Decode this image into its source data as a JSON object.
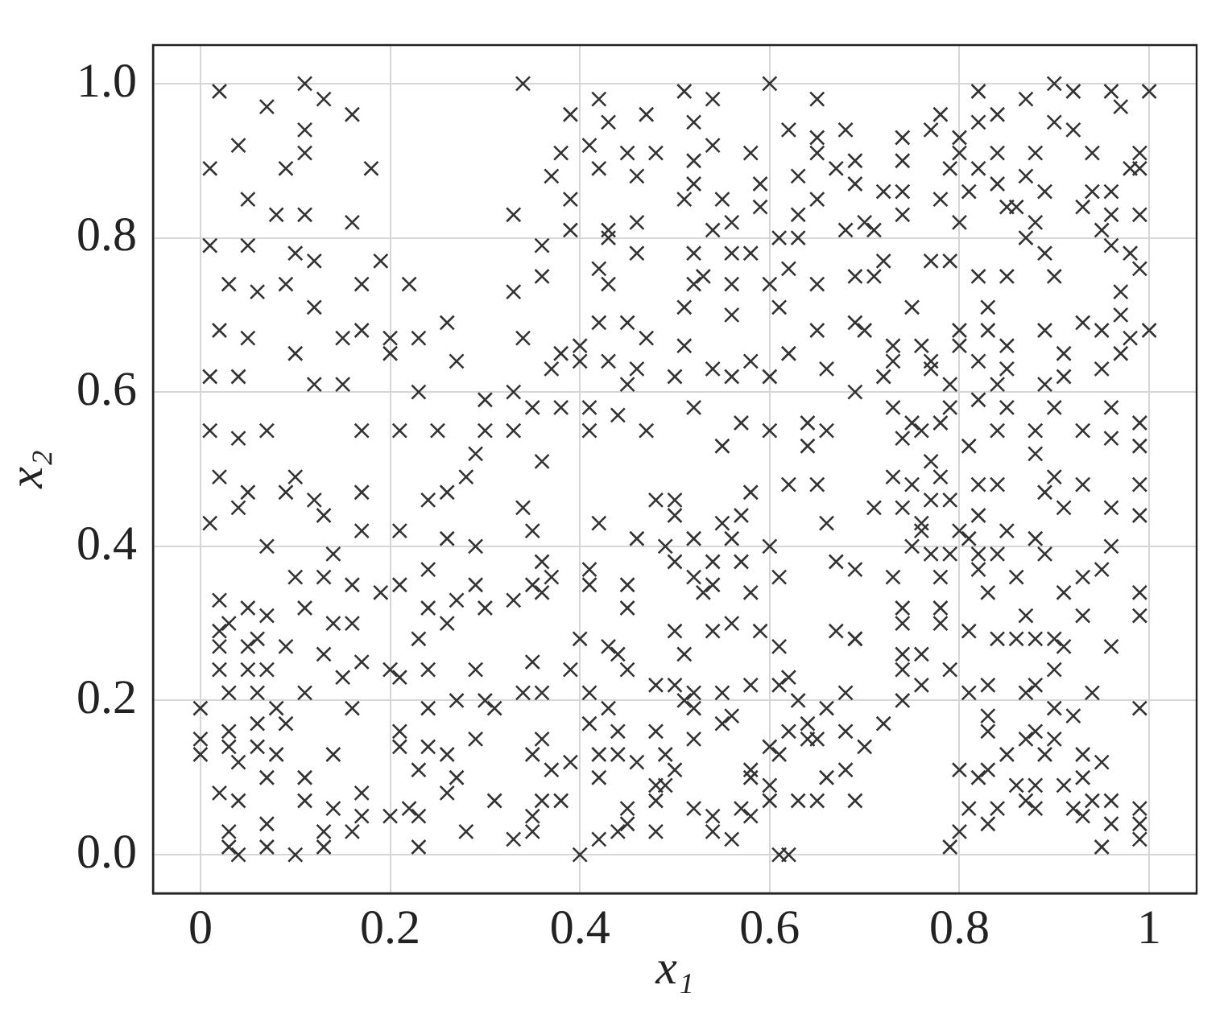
{
  "chart_data": {
    "type": "scatter",
    "xlabel": "x₁",
    "ylabel": "x₂",
    "color": "#333333",
    "marker": "cross",
    "grid": true,
    "xlim": [
      -0.05,
      1.05
    ],
    "ylim": [
      -0.05,
      1.05
    ],
    "xticks": [
      0,
      0.2,
      0.4,
      0.6,
      0.8,
      1
    ],
    "yticks": [
      {
        "value": 0,
        "label": "0.0"
      },
      0.2,
      0.4,
      0.6,
      0.8,
      {
        "value": 1,
        "label": "1.0"
      }
    ],
    "x": [
      0.02,
      0.07,
      0.11,
      0.13,
      0.16,
      0.04,
      0.11,
      0.11,
      0.01,
      0.09,
      0.18,
      0.05,
      0.08,
      0.11,
      0.16,
      0.01,
      0.05,
      0.1,
      0.12,
      0.19,
      0.03,
      0.06,
      0.09,
      0.17,
      0.22,
      0.02,
      0.05,
      0.12,
      0.15,
      0.17,
      0.2,
      0.23,
      0.26,
      0.01,
      0.04,
      0.1,
      0.12,
      0.15,
      0.2,
      0.23,
      0.27,
      0.3,
      0.01,
      0.04,
      0.07,
      0.17,
      0.21,
      0.25,
      0.29,
      0.3,
      0.34,
      0.42,
      0.51,
      0.54,
      0.6,
      0.65,
      0.39,
      0.43,
      0.47,
      0.52,
      0.68,
      0.41,
      0.38,
      0.48,
      0.54,
      0.62,
      0.65,
      0.65,
      0.42,
      0.45,
      0.52,
      0.58,
      0.67,
      0.37,
      0.46,
      0.52,
      0.59,
      0.63,
      0.39,
      0.51,
      0.55,
      0.59,
      0.65,
      0.33,
      0.39,
      0.43,
      0.46,
      0.54,
      0.56,
      0.63,
      0.68,
      0.36,
      0.43,
      0.46,
      0.52,
      0.56,
      0.58,
      0.61,
      0.63,
      0.42,
      0.43,
      0.36,
      0.33,
      0.52,
      0.53,
      0.56,
      0.6,
      0.62,
      0.65,
      0.69,
      0.51,
      0.56,
      0.61,
      0.69,
      0.42,
      0.45,
      0.47,
      0.34,
      0.38,
      0.4,
      0.51,
      0.58,
      0.62,
      0.65,
      0.37,
      0.4,
      0.43,
      0.46,
      0.5,
      0.54,
      0.56,
      0.6,
      0.66,
      0.45,
      0.33,
      0.41,
      0.44,
      0.35,
      0.38,
      0.52,
      0.57,
      0.6,
      0.64,
      0.66,
      0.33,
      0.41,
      0.47,
      0.36,
      0.55,
      0.64,
      0.82,
      0.87,
      0.9,
      0.92,
      0.96,
      0.97,
      1.0,
      0.78,
      0.77,
      0.82,
      0.84,
      0.9,
      0.92,
      0.74,
      0.8,
      0.8,
      0.94,
      0.99,
      0.74,
      0.69,
      0.79,
      0.82,
      0.84,
      0.88,
      0.98,
      0.99,
      0.87,
      0.69,
      0.84,
      0.72,
      0.74,
      0.78,
      0.81,
      0.89,
      0.94,
      0.96,
      0.85,
      0.86,
      0.93,
      0.96,
      0.7,
      0.74,
      0.8,
      0.88,
      0.95,
      0.99,
      0.71,
      0.87,
      0.96,
      0.72,
      0.77,
      0.79,
      0.89,
      0.98,
      0.71,
      0.82,
      0.85,
      0.9,
      0.99,
      0.97,
      0.75,
      0.83,
      0.7,
      0.8,
      0.83,
      0.89,
      0.93,
      0.95,
      0.97,
      1.0,
      0.73,
      0.76,
      0.8,
      0.85,
      0.98,
      0.73,
      0.77,
      0.77,
      0.82,
      0.85,
      0.91,
      0.95,
      0.97,
      0.72,
      0.79,
      0.84,
      0.89,
      0.91,
      0.69,
      0.82,
      0.85,
      0.9,
      0.96,
      0.73,
      0.75,
      0.79,
      0.78,
      0.76,
      0.74,
      0.84,
      0.88,
      0.93,
      0.96,
      0.99,
      0.99,
      0.77,
      0.81,
      0.88,
      0.02,
      0.05,
      0.09,
      0.1,
      0.12,
      0.13,
      0.17,
      0.04,
      0.01,
      0.07,
      0.14,
      0.17,
      0.1,
      0.13,
      0.16,
      0.19,
      0.21,
      0.02,
      0.05,
      0.07,
      0.11,
      0.14,
      0.16,
      0.02,
      0.03,
      0.06,
      0.02,
      0.05,
      0.09,
      0.13,
      0.02,
      0.05,
      0.07,
      0.15,
      0.17,
      0.2,
      0.21,
      0.03,
      0.06,
      0.08,
      0.0,
      0.11,
      0.16,
      0.06,
      0.09,
      0.0,
      0.03,
      0.0,
      0.03,
      0.04,
      0.06,
      0.08,
      0.14,
      0.07,
      0.11,
      0.02,
      0.04,
      0.11,
      0.14,
      0.17,
      0.03,
      0.03,
      0.04,
      0.07,
      0.07,
      0.1,
      0.13,
      0.13,
      0.17,
      0.16,
      0.2,
      0.22,
      0.23,
      0.23,
      0.21,
      0.24,
      0.26,
      0.28,
      0.24,
      0.24,
      0.27,
      0.26,
      0.23,
      0.24,
      0.29,
      0.26,
      0.29,
      0.3,
      0.29,
      0.24,
      0.27,
      0.3,
      0.31,
      0.29,
      0.24,
      0.26,
      0.27,
      0.26,
      0.23,
      0.21,
      0.21,
      0.31,
      0.28,
      0.34,
      0.35,
      0.42,
      0.48,
      0.5,
      0.5,
      0.55,
      0.57,
      0.58,
      0.62,
      0.65,
      0.66,
      0.46,
      0.49,
      0.5,
      0.52,
      0.56,
      0.54,
      0.57,
      0.6,
      0.36,
      0.41,
      0.35,
      0.37,
      0.41,
      0.45,
      0.52,
      0.54,
      0.61,
      0.67,
      0.69,
      0.33,
      0.36,
      0.45,
      0.53,
      0.58,
      0.4,
      0.5,
      0.54,
      0.56,
      0.59,
      0.61,
      0.67,
      0.69,
      0.43,
      0.44,
      0.45,
      0.35,
      0.39,
      0.51,
      0.48,
      0.5,
      0.52,
      0.55,
      0.58,
      0.61,
      0.62,
      0.63,
      0.68,
      0.34,
      0.36,
      0.41,
      0.51,
      0.43,
      0.41,
      0.44,
      0.52,
      0.55,
      0.56,
      0.62,
      0.64,
      0.66,
      0.68,
      0.36,
      0.48,
      0.52,
      0.35,
      0.39,
      0.37,
      0.42,
      0.44,
      0.46,
      0.49,
      0.5,
      0.42,
      0.58,
      0.6,
      0.61,
      0.64,
      0.65,
      0.48,
      0.49,
      0.58,
      0.6,
      0.66,
      0.68,
      0.36,
      0.38,
      0.45,
      0.48,
      0.52,
      0.57,
      0.58,
      0.6,
      0.63,
      0.65,
      0.35,
      0.35,
      0.45,
      0.48,
      0.42,
      0.44,
      0.54,
      0.54,
      0.56,
      0.33,
      0.4,
      0.61,
      0.62,
      0.73,
      0.75,
      0.78,
      0.82,
      0.84,
      0.9,
      0.93,
      0.99,
      0.71,
      0.74,
      0.77,
      0.79,
      0.89,
      0.91,
      0.96,
      0.99,
      0.76,
      0.76,
      0.75,
      0.77,
      0.8,
      0.82,
      0.85,
      0.88,
      0.81,
      0.82,
      0.84,
      0.89,
      0.96,
      0.79,
      0.73,
      0.78,
      0.82,
      0.83,
      0.86,
      0.93,
      0.95,
      0.91,
      0.99,
      0.74,
      0.78,
      0.78,
      0.74,
      0.69,
      0.81,
      0.84,
      0.86,
      0.87,
      0.88,
      0.9,
      0.91,
      0.93,
      0.96,
      0.99,
      0.74,
      0.76,
      0.74,
      0.76,
      0.79,
      0.81,
      0.83,
      0.87,
      0.88,
      0.9,
      0.94,
      0.74,
      0.72,
      0.7,
      0.9,
      0.92,
      0.99,
      0.83,
      0.83,
      0.85,
      0.88,
      0.89,
      0.9,
      0.87,
      0.93,
      0.95,
      0.8,
      0.82,
      0.83,
      0.86,
      0.88,
      0.91,
      0.93,
      0.81,
      0.84,
      0.87,
      0.88,
      0.92,
      0.94,
      0.96,
      0.99,
      0.99,
      0.93,
      0.96,
      0.8,
      0.83,
      0.79,
      0.95,
      0.99,
      0.69
    ],
    "values": [
      0.99,
      0.97,
      1.0,
      0.98,
      0.96,
      0.92,
      0.94,
      0.91,
      0.89,
      0.89,
      0.89,
      0.85,
      0.83,
      0.83,
      0.82,
      0.79,
      0.79,
      0.78,
      0.77,
      0.77,
      0.74,
      0.73,
      0.74,
      0.74,
      0.74,
      0.68,
      0.67,
      0.71,
      0.67,
      0.68,
      0.67,
      0.67,
      0.69,
      0.62,
      0.62,
      0.65,
      0.61,
      0.61,
      0.65,
      0.6,
      0.64,
      0.59,
      0.55,
      0.54,
      0.55,
      0.55,
      0.55,
      0.55,
      0.52,
      0.55,
      1.0,
      0.98,
      0.99,
      0.98,
      1.0,
      0.98,
      0.96,
      0.95,
      0.96,
      0.95,
      0.94,
      0.92,
      0.91,
      0.91,
      0.92,
      0.94,
      0.93,
      0.91,
      0.89,
      0.91,
      0.9,
      0.91,
      0.89,
      0.88,
      0.88,
      0.87,
      0.87,
      0.88,
      0.85,
      0.85,
      0.85,
      0.84,
      0.85,
      0.83,
      0.81,
      0.81,
      0.82,
      0.81,
      0.82,
      0.83,
      0.81,
      0.79,
      0.8,
      0.78,
      0.78,
      0.78,
      0.78,
      0.8,
      0.8,
      0.76,
      0.74,
      0.75,
      0.73,
      0.74,
      0.75,
      0.74,
      0.74,
      0.76,
      0.74,
      0.75,
      0.71,
      0.7,
      0.71,
      0.69,
      0.69,
      0.69,
      0.67,
      0.67,
      0.65,
      0.66,
      0.66,
      0.64,
      0.65,
      0.68,
      0.63,
      0.64,
      0.64,
      0.63,
      0.62,
      0.63,
      0.62,
      0.62,
      0.63,
      0.61,
      0.6,
      0.58,
      0.57,
      0.58,
      0.58,
      0.58,
      0.56,
      0.55,
      0.56,
      0.55,
      0.55,
      0.55,
      0.55,
      0.51,
      0.53,
      0.53,
      0.99,
      0.98,
      1.0,
      0.99,
      0.99,
      0.97,
      0.99,
      0.96,
      0.94,
      0.95,
      0.96,
      0.95,
      0.94,
      0.93,
      0.93,
      0.91,
      0.91,
      0.91,
      0.9,
      0.9,
      0.89,
      0.89,
      0.91,
      0.91,
      0.89,
      0.89,
      0.88,
      0.87,
      0.87,
      0.86,
      0.86,
      0.85,
      0.86,
      0.86,
      0.86,
      0.86,
      0.84,
      0.84,
      0.84,
      0.83,
      0.82,
      0.83,
      0.82,
      0.82,
      0.81,
      0.83,
      0.81,
      0.8,
      0.79,
      0.77,
      0.77,
      0.77,
      0.78,
      0.78,
      0.75,
      0.75,
      0.75,
      0.75,
      0.76,
      0.73,
      0.71,
      0.71,
      0.68,
      0.68,
      0.68,
      0.68,
      0.69,
      0.68,
      0.7,
      0.68,
      0.66,
      0.66,
      0.66,
      0.66,
      0.67,
      0.64,
      0.63,
      0.64,
      0.64,
      0.63,
      0.65,
      0.63,
      0.65,
      0.62,
      0.61,
      0.61,
      0.61,
      0.62,
      0.6,
      0.59,
      0.58,
      0.58,
      0.58,
      0.58,
      0.56,
      0.58,
      0.56,
      0.55,
      0.54,
      0.55,
      0.55,
      0.55,
      0.54,
      0.56,
      0.53,
      0.51,
      0.53,
      0.52,
      0.49,
      0.47,
      0.47,
      0.49,
      0.46,
      0.44,
      0.47,
      0.45,
      0.43,
      0.4,
      0.39,
      0.42,
      0.36,
      0.36,
      0.35,
      0.34,
      0.35,
      0.33,
      0.32,
      0.31,
      0.32,
      0.3,
      0.3,
      0.29,
      0.3,
      0.28,
      0.27,
      0.27,
      0.27,
      0.26,
      0.24,
      0.24,
      0.24,
      0.23,
      0.25,
      0.24,
      0.23,
      0.21,
      0.21,
      0.19,
      0.19,
      0.21,
      0.19,
      0.17,
      0.17,
      0.15,
      0.16,
      0.13,
      0.14,
      0.12,
      0.14,
      0.13,
      0.13,
      0.1,
      0.1,
      0.08,
      0.07,
      0.07,
      0.06,
      0.08,
      0.03,
      0.01,
      0.0,
      0.04,
      0.01,
      0.0,
      0.03,
      0.01,
      0.05,
      0.03,
      0.05,
      0.06,
      0.05,
      0.01,
      0.42,
      0.46,
      0.47,
      0.49,
      0.37,
      0.32,
      0.33,
      0.3,
      0.28,
      0.24,
      0.24,
      0.41,
      0.4,
      0.32,
      0.35,
      0.19,
      0.2,
      0.2,
      0.19,
      0.15,
      0.14,
      0.13,
      0.1,
      0.08,
      0.11,
      0.16,
      0.14,
      0.07,
      0.03,
      0.45,
      0.42,
      0.43,
      0.46,
      0.46,
      0.44,
      0.43,
      0.44,
      0.47,
      0.48,
      0.48,
      0.43,
      0.41,
      0.4,
      0.38,
      0.41,
      0.41,
      0.38,
      0.38,
      0.4,
      0.38,
      0.37,
      0.35,
      0.36,
      0.35,
      0.35,
      0.36,
      0.35,
      0.36,
      0.38,
      0.37,
      0.33,
      0.34,
      0.32,
      0.34,
      0.34,
      0.28,
      0.29,
      0.29,
      0.3,
      0.29,
      0.27,
      0.29,
      0.28,
      0.27,
      0.26,
      0.24,
      0.25,
      0.24,
      0.26,
      0.22,
      0.22,
      0.21,
      0.21,
      0.22,
      0.22,
      0.23,
      0.2,
      0.21,
      0.21,
      0.21,
      0.21,
      0.2,
      0.19,
      0.17,
      0.16,
      0.19,
      0.17,
      0.18,
      0.16,
      0.17,
      0.19,
      0.16,
      0.15,
      0.16,
      0.15,
      0.13,
      0.12,
      0.11,
      0.13,
      0.13,
      0.12,
      0.13,
      0.11,
      0.1,
      0.11,
      0.14,
      0.13,
      0.15,
      0.15,
      0.09,
      0.09,
      0.1,
      0.09,
      0.1,
      0.11,
      0.07,
      0.07,
      0.06,
      0.07,
      0.06,
      0.06,
      0.05,
      0.07,
      0.07,
      0.07,
      0.05,
      0.03,
      0.04,
      0.03,
      0.02,
      0.03,
      0.03,
      0.05,
      0.02,
      0.02,
      0.0,
      0.0,
      0.0,
      0.49,
      0.48,
      0.49,
      0.48,
      0.48,
      0.49,
      0.48,
      0.48,
      0.45,
      0.45,
      0.46,
      0.46,
      0.47,
      0.45,
      0.45,
      0.44,
      0.43,
      0.42,
      0.4,
      0.39,
      0.42,
      0.44,
      0.42,
      0.41,
      0.41,
      0.39,
      0.39,
      0.39,
      0.4,
      0.39,
      0.36,
      0.36,
      0.37,
      0.34,
      0.36,
      0.36,
      0.37,
      0.34,
      0.34,
      0.32,
      0.32,
      0.3,
      0.3,
      0.28,
      0.29,
      0.28,
      0.28,
      0.31,
      0.28,
      0.28,
      0.27,
      0.31,
      0.27,
      0.31,
      0.26,
      0.26,
      0.24,
      0.22,
      0.24,
      0.21,
      0.22,
      0.21,
      0.22,
      0.24,
      0.21,
      0.2,
      0.17,
      0.14,
      0.19,
      0.18,
      0.19,
      0.18,
      0.16,
      0.13,
      0.16,
      0.13,
      0.15,
      0.15,
      0.13,
      0.12,
      0.11,
      0.1,
      0.11,
      0.09,
      0.09,
      0.09,
      0.1,
      0.06,
      0.06,
      0.07,
      0.06,
      0.06,
      0.07,
      0.07,
      0.06,
      0.04,
      0.05,
      0.04,
      0.03,
      0.04,
      0.01,
      0.01,
      0.02,
      0.07
    ]
  }
}
